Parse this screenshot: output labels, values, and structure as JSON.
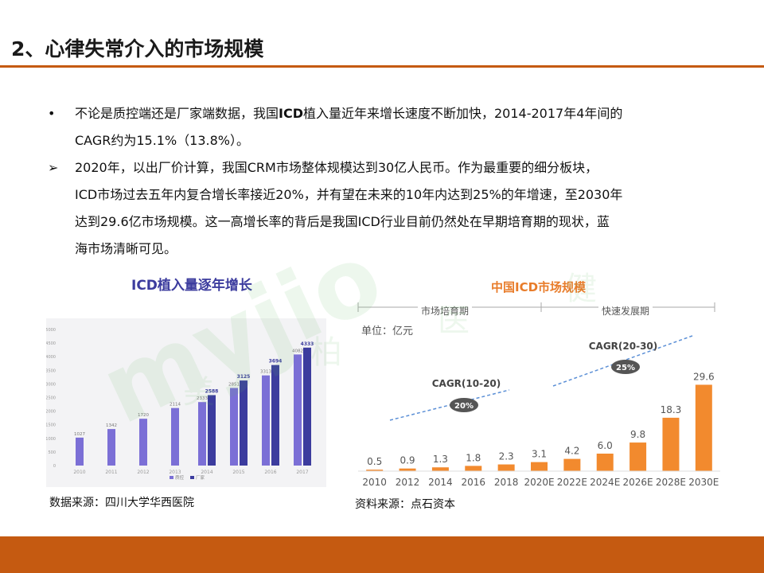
{
  "title": "2、心律失常介入的市场规模",
  "bullets": [
    {
      "mark": "•",
      "line1_a": "不论是质控端还是厂家端数据，我国",
      "line1_bold": "ICD",
      "line1_b": "植入量近年来增长速度不断加快，2014-2017年4年间的",
      "line2": "CAGR约为15.1%（13.8%）。"
    },
    {
      "mark": "➢",
      "line1": "2020年，以出厂价计算，我国CRM市场整体规模达到30亿人民币。作为最重要的细分板块，",
      "line2": "ICD市场过去五年内复合增长率接近20%，并有望在未来的10年内达到25%的年增速，至2030年",
      "line3": "达到29.6亿市场规模。这一高增长率的背后是我国ICD行业目前仍然处在早期培育期的现状，蓝",
      "line4": "海市场清晰可见。"
    }
  ],
  "watermark": {
    "logo": "myjio",
    "cn1": "美",
    "cn2": "柏",
    "cn3": "医",
    "cn4": "健"
  },
  "left_source": "数据来源：四川大学华西医院",
  "right_source": "资料来源：点石资本",
  "right_unit": "单位：亿元",
  "right_phases": {
    "early": "市场培育期",
    "fast": "快速发展期"
  },
  "right_cagr": [
    {
      "label": "CAGR(10-20)",
      "value": "20%"
    },
    {
      "label": "CAGR(20-30)",
      "value": "25%"
    }
  ],
  "colors": {
    "accent": "#c55a11",
    "left_series_a": "#7b6fd6",
    "left_series_b": "#3c3c9e",
    "right_bar": "#f28a2e",
    "cagr_badge": "#555555",
    "arrow_blue": "#5b8fd6"
  },
  "chart_data": [
    {
      "type": "bar",
      "title": "ICD植入量逐年增长",
      "categories": [
        "2010",
        "2011",
        "2012",
        "2013",
        "2014",
        "2015",
        "2016",
        "2017"
      ],
      "series": [
        {
          "name": "质控",
          "values": [
            1027,
            1342,
            1720,
            2114,
            2333,
            2851,
            3313,
            4082
          ]
        },
        {
          "name": "厂家",
          "values": [
            null,
            null,
            null,
            null,
            2588,
            3125,
            3694,
            4333
          ]
        }
      ],
      "yticks": [
        "5000",
        "4500",
        "4000",
        "3500",
        "3000",
        "2500",
        "2000",
        "1500",
        "1000",
        "500",
        "0"
      ],
      "ylim": [
        0,
        5000
      ],
      "grid": false,
      "legend": "bottom"
    },
    {
      "type": "bar",
      "title": "中国ICD市场规模",
      "categories": [
        "2010",
        "2012",
        "2014",
        "2016",
        "2018",
        "2020E",
        "2022E",
        "2024E",
        "2026E",
        "2028E",
        "2030E"
      ],
      "values": [
        0.5,
        0.9,
        1.3,
        1.8,
        2.3,
        3.1,
        4.2,
        6.0,
        9.8,
        18.3,
        29.6
      ],
      "labels": [
        "0.5",
        "0.9",
        "1.3",
        "1.8",
        "2.3",
        "3.1",
        "4.2",
        "6.0",
        "9.8",
        "18.3",
        "29.6"
      ],
      "ylim": [
        0,
        30
      ],
      "grid": false
    }
  ]
}
